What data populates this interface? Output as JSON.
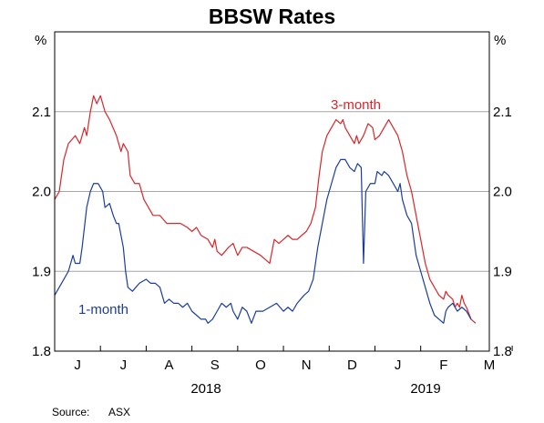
{
  "chart_data": {
    "type": "line",
    "title": "BBSW Rates",
    "unit_left": "%",
    "unit_right": "%",
    "ylim": [
      1.8,
      2.2
    ],
    "yticks": [
      "1.8",
      "1.9",
      "2.0",
      "2.1"
    ],
    "x_months": [
      "J",
      "J",
      "A",
      "S",
      "O",
      "N",
      "D",
      "J",
      "F",
      "M"
    ],
    "x_years": [
      "2018",
      "2019"
    ],
    "xlim": [
      0,
      9.5
    ],
    "grid": true,
    "source_label": "Source:",
    "source_value": "ASX",
    "series": [
      {
        "name": "3-month",
        "color": "#d9262b",
        "points": [
          [
            0.0,
            1.99
          ],
          [
            0.1,
            2.0
          ],
          [
            0.2,
            2.04
          ],
          [
            0.3,
            2.06
          ],
          [
            0.45,
            2.07
          ],
          [
            0.55,
            2.06
          ],
          [
            0.65,
            2.08
          ],
          [
            0.7,
            2.07
          ],
          [
            0.78,
            2.1
          ],
          [
            0.85,
            2.12
          ],
          [
            0.92,
            2.11
          ],
          [
            1.0,
            2.12
          ],
          [
            1.1,
            2.1
          ],
          [
            1.2,
            2.09
          ],
          [
            1.35,
            2.07
          ],
          [
            1.45,
            2.05
          ],
          [
            1.5,
            2.06
          ],
          [
            1.6,
            2.05
          ],
          [
            1.65,
            2.02
          ],
          [
            1.75,
            2.01
          ],
          [
            1.85,
            2.01
          ],
          [
            1.95,
            1.99
          ],
          [
            2.05,
            1.98
          ],
          [
            2.15,
            1.97
          ],
          [
            2.3,
            1.97
          ],
          [
            2.45,
            1.96
          ],
          [
            2.6,
            1.96
          ],
          [
            2.75,
            1.96
          ],
          [
            2.9,
            1.955
          ],
          [
            3.0,
            1.95
          ],
          [
            3.1,
            1.955
          ],
          [
            3.2,
            1.945
          ],
          [
            3.35,
            1.94
          ],
          [
            3.45,
            1.93
          ],
          [
            3.5,
            1.94
          ],
          [
            3.55,
            1.925
          ],
          [
            3.65,
            1.92
          ],
          [
            3.8,
            1.93
          ],
          [
            3.9,
            1.935
          ],
          [
            4.0,
            1.92
          ],
          [
            4.1,
            1.93
          ],
          [
            4.2,
            1.93
          ],
          [
            4.35,
            1.925
          ],
          [
            4.5,
            1.92
          ],
          [
            4.6,
            1.915
          ],
          [
            4.7,
            1.91
          ],
          [
            4.8,
            1.94
          ],
          [
            4.9,
            1.935
          ],
          [
            5.0,
            1.94
          ],
          [
            5.1,
            1.945
          ],
          [
            5.2,
            1.94
          ],
          [
            5.3,
            1.94
          ],
          [
            5.4,
            1.945
          ],
          [
            5.5,
            1.95
          ],
          [
            5.6,
            1.96
          ],
          [
            5.7,
            1.98
          ],
          [
            5.78,
            2.02
          ],
          [
            5.85,
            2.05
          ],
          [
            5.95,
            2.07
          ],
          [
            6.05,
            2.08
          ],
          [
            6.15,
            2.09
          ],
          [
            6.25,
            2.085
          ],
          [
            6.3,
            2.09
          ],
          [
            6.35,
            2.08
          ],
          [
            6.45,
            2.07
          ],
          [
            6.55,
            2.06
          ],
          [
            6.6,
            2.07
          ],
          [
            6.65,
            2.06
          ],
          [
            6.75,
            2.07
          ],
          [
            6.85,
            2.085
          ],
          [
            6.95,
            2.08
          ],
          [
            7.0,
            2.065
          ],
          [
            7.1,
            2.07
          ],
          [
            7.2,
            2.08
          ],
          [
            7.3,
            2.09
          ],
          [
            7.4,
            2.08
          ],
          [
            7.5,
            2.07
          ],
          [
            7.6,
            2.05
          ],
          [
            7.7,
            2.02
          ],
          [
            7.8,
            2.0
          ],
          [
            7.9,
            1.97
          ],
          [
            8.0,
            1.94
          ],
          [
            8.1,
            1.91
          ],
          [
            8.2,
            1.89
          ],
          [
            8.3,
            1.88
          ],
          [
            8.4,
            1.87
          ],
          [
            8.5,
            1.865
          ],
          [
            8.55,
            1.875
          ],
          [
            8.6,
            1.87
          ],
          [
            8.7,
            1.865
          ],
          [
            8.75,
            1.855
          ],
          [
            8.8,
            1.86
          ],
          [
            8.85,
            1.855
          ],
          [
            8.9,
            1.87
          ],
          [
            8.95,
            1.86
          ],
          [
            9.0,
            1.855
          ],
          [
            9.1,
            1.84
          ],
          [
            9.2,
            1.835
          ]
        ]
      },
      {
        "name": "1-month",
        "color": "#1c3d9e",
        "points": [
          [
            0.0,
            1.87
          ],
          [
            0.1,
            1.88
          ],
          [
            0.2,
            1.89
          ],
          [
            0.3,
            1.9
          ],
          [
            0.4,
            1.92
          ],
          [
            0.45,
            1.91
          ],
          [
            0.55,
            1.91
          ],
          [
            0.6,
            1.93
          ],
          [
            0.7,
            1.98
          ],
          [
            0.78,
            2.0
          ],
          [
            0.85,
            2.01
          ],
          [
            0.95,
            2.01
          ],
          [
            1.05,
            2.0
          ],
          [
            1.1,
            1.98
          ],
          [
            1.2,
            1.985
          ],
          [
            1.28,
            1.97
          ],
          [
            1.35,
            1.96
          ],
          [
            1.4,
            1.96
          ],
          [
            1.5,
            1.93
          ],
          [
            1.55,
            1.9
          ],
          [
            1.6,
            1.88
          ],
          [
            1.7,
            1.875
          ],
          [
            1.85,
            1.885
          ],
          [
            2.0,
            1.89
          ],
          [
            2.1,
            1.885
          ],
          [
            2.2,
            1.885
          ],
          [
            2.3,
            1.88
          ],
          [
            2.35,
            1.87
          ],
          [
            2.4,
            1.86
          ],
          [
            2.5,
            1.865
          ],
          [
            2.6,
            1.86
          ],
          [
            2.7,
            1.86
          ],
          [
            2.8,
            1.855
          ],
          [
            2.9,
            1.86
          ],
          [
            3.0,
            1.85
          ],
          [
            3.1,
            1.845
          ],
          [
            3.2,
            1.84
          ],
          [
            3.3,
            1.84
          ],
          [
            3.35,
            1.835
          ],
          [
            3.45,
            1.84
          ],
          [
            3.55,
            1.85
          ],
          [
            3.65,
            1.86
          ],
          [
            3.75,
            1.855
          ],
          [
            3.85,
            1.86
          ],
          [
            3.9,
            1.85
          ],
          [
            4.0,
            1.84
          ],
          [
            4.1,
            1.855
          ],
          [
            4.2,
            1.85
          ],
          [
            4.3,
            1.835
          ],
          [
            4.4,
            1.85
          ],
          [
            4.55,
            1.85
          ],
          [
            4.7,
            1.855
          ],
          [
            4.85,
            1.86
          ],
          [
            5.0,
            1.85
          ],
          [
            5.1,
            1.855
          ],
          [
            5.2,
            1.85
          ],
          [
            5.3,
            1.86
          ],
          [
            5.45,
            1.87
          ],
          [
            5.55,
            1.875
          ],
          [
            5.65,
            1.89
          ],
          [
            5.75,
            1.93
          ],
          [
            5.85,
            1.96
          ],
          [
            5.95,
            1.99
          ],
          [
            6.05,
            2.01
          ],
          [
            6.15,
            2.03
          ],
          [
            6.25,
            2.04
          ],
          [
            6.35,
            2.04
          ],
          [
            6.45,
            2.03
          ],
          [
            6.55,
            2.025
          ],
          [
            6.62,
            2.035
          ],
          [
            6.7,
            2.03
          ],
          [
            6.75,
            1.91
          ],
          [
            6.8,
            2.0
          ],
          [
            6.9,
            2.01
          ],
          [
            7.0,
            2.01
          ],
          [
            7.05,
            2.025
          ],
          [
            7.15,
            2.02
          ],
          [
            7.2,
            2.025
          ],
          [
            7.3,
            2.02
          ],
          [
            7.4,
            2.01
          ],
          [
            7.5,
            2.0
          ],
          [
            7.55,
            2.01
          ],
          [
            7.6,
            1.99
          ],
          [
            7.7,
            1.97
          ],
          [
            7.8,
            1.96
          ],
          [
            7.9,
            1.92
          ],
          [
            8.0,
            1.9
          ],
          [
            8.1,
            1.88
          ],
          [
            8.2,
            1.86
          ],
          [
            8.3,
            1.845
          ],
          [
            8.4,
            1.84
          ],
          [
            8.5,
            1.835
          ],
          [
            8.55,
            1.85
          ],
          [
            8.6,
            1.855
          ],
          [
            8.7,
            1.86
          ],
          [
            8.8,
            1.85
          ],
          [
            8.9,
            1.855
          ],
          [
            9.0,
            1.85
          ],
          [
            9.1,
            1.84
          ]
        ]
      }
    ]
  }
}
